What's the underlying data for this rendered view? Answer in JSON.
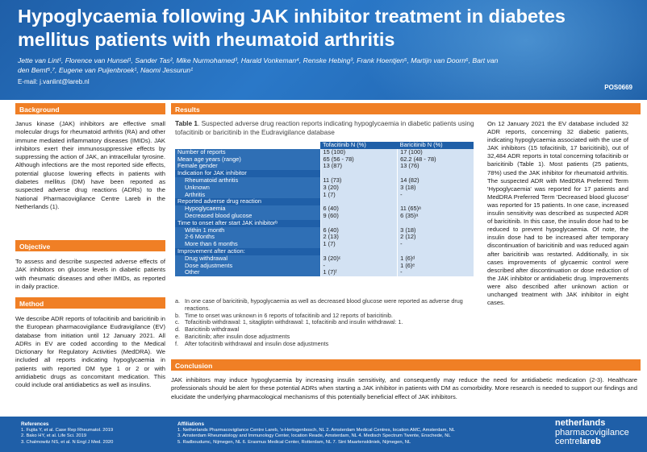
{
  "header": {
    "title": "Hypoglycaemia following JAK inhibitor treatment in diabetes mellitus patients with rheumatoid arthritis",
    "authors": "Jette van Lint¹, Florence van Hunsel¹, Sander Tas², Mike Nurmohamed³, Harald Vonkeman⁴, Renske Hebing³, Frank Hoentjen⁵, Martijn van Doorn⁶, Bart van den Bemt⁵,⁷, Eugene van Puijenbroek¹, Naomi Jessurun¹",
    "email": "E-mail: j.vanlint@lareb.nl",
    "poster_code": "POS0669"
  },
  "background": {
    "heading": "Background",
    "text": "Janus kinase (JAK) inhibitors are effective small molecular drugs for rheumatoid arthritis (RA) and other immune mediated inflammatory diseases (IMIDs). JAK inhibitors exert their immunosuppressive effects by suppressing the action of JAK, an intracellular tyrosine. Although infections are the most reported side effects, potential glucose lowering effects in patients with diabetes mellitus (DM) have been reported as suspected adverse drug reactions (ADRs) to the National Pharmacovigilance Centre Lareb in the Netherlands (1)."
  },
  "objective": {
    "heading": "Objective",
    "text": "To assess and describe suspected adverse effects of JAK inhibitors on glucose levels in diabetic patients with rheumatic diseases and other IMIDs, as reported in daily practice."
  },
  "method": {
    "heading": "Method",
    "text": "We describe ADR reports of tofacitinib and baricitinib in the European pharmacovigilance Eudravigilance (EV) database from initiation until 12 January 2021. All ADRs in EV are coded according to the Medical Dictionary for Regulatory Activities (MedDRA). We included all reports indicating hypoglycaemia in patients with reported DM type 1 or 2 or with antidiabetic drugs as concomitant medication. This could include oral antidiabetics as well as insulins."
  },
  "results": {
    "heading": "Results",
    "table_title_label": "Table 1",
    "table_title_text": ". Suspected adverse drug reaction reports indicating hypoglycaemia in diabetic patients using tofacitinib or baricitinib in the Eudravigilance database",
    "col1": "Tofacitinib N (%)",
    "col2": "Baricitinib N (%)",
    "rows": [
      {
        "label": "Number of reports",
        "a": "15 (100)",
        "b": "17 (100)",
        "kind": "main"
      },
      {
        "label": "Mean age years (range)",
        "a": "65 (56 - 78)",
        "b": "62.2 (48 - 78)",
        "kind": "main"
      },
      {
        "label": "Female gender",
        "a": "13 (87)",
        "b": "13 (76)",
        "kind": "main"
      },
      {
        "label": "Indication for JAK inhibitor",
        "a": "",
        "b": "",
        "kind": "cat"
      },
      {
        "label": "Rheumatoid arthritis",
        "a": "11 (73)",
        "b": "14 (82)",
        "kind": "sub"
      },
      {
        "label": "Unknown",
        "a": "3 (20)",
        "b": "3 (18)",
        "kind": "sub"
      },
      {
        "label": "Arthritis",
        "a": "1 (7)",
        "b": "-",
        "kind": "sub"
      },
      {
        "label": "Reported adverse drug reaction",
        "a": "",
        "b": "",
        "kind": "cat"
      },
      {
        "label": "Hypoglycaemia",
        "a": "6 (40)",
        "b": "11 (65)ᵃ",
        "kind": "sub"
      },
      {
        "label": "Decreased blood glucose",
        "a": "9 (60)",
        "b": "6 (35)ᵃ",
        "kind": "sub"
      },
      {
        "label": "Time to onset after start JAK inhibitorᵇ",
        "a": "",
        "b": "",
        "kind": "cat"
      },
      {
        "label": "Within 1 month",
        "a": "6 (40)",
        "b": "3 (18)",
        "kind": "sub"
      },
      {
        "label": "2-6 Months",
        "a": "2 (13)",
        "b": "2 (12)",
        "kind": "sub"
      },
      {
        "label": "More than 6 months",
        "a": "1 (7)",
        "b": "-",
        "kind": "sub"
      },
      {
        "label": "Improvement after action:",
        "a": "",
        "b": "",
        "kind": "cat"
      },
      {
        "label": "Drug withdrawal",
        "a": "3 (20)ᶜ",
        "b": "1 (6)ᵈ",
        "kind": "sub"
      },
      {
        "label": "Dose adjustments",
        "a": "-",
        "b": "1 (6)ᵉ",
        "kind": "sub"
      },
      {
        "label": "Other",
        "a": "1 (7)ᶠ",
        "b": "-",
        "kind": "sub"
      }
    ],
    "footnotes": [
      {
        "k": "a.",
        "t": "In one case of baricitinib, hypoglycaemia as well as decreased blood glucose were reported as adverse drug reactions."
      },
      {
        "k": "b.",
        "t": "Time to onset was unknown in 6 reports of tofacitinib and 12 reports of baricitinib."
      },
      {
        "k": "c.",
        "t": "Tofacitinib withdrawal: 1, sitagliptin withdrawal: 1, tofacitinib and insulin withdrawal: 1."
      },
      {
        "k": "d.",
        "t": "Baricitinib withdrawal"
      },
      {
        "k": "e.",
        "t": "Baricitinib; after insulin dose adjustments"
      },
      {
        "k": "f.",
        "t": "After tofacitinib withdrawal and insulin dose adjustments"
      }
    ],
    "right_text": "On 12 January 2021 the EV database included 32 ADR reports, concerning 32 diabetic patients, indicating hypoglycaemia associated with the use of JAK inhibitors (15 tofacitinib, 17 baricitinib), out of 32,484 ADR reports in total concerning tofacitinib or baricitinib (Table 1). Most patients (25 patients, 78%) used the JAK inhibitor for rheumatoid arthritis. The suspected ADR with MedDRA Preferred Term 'Hypoglycaemia' was reported for 17 patients and MedDRA Preferred Term 'Decreased blood glucose' was reported for 15 patients. In one case, increased insulin sensitivity was described as suspected ADR of baricitinib. In this case, the insulin dose had to be reduced to prevent hypoglycaemia. Of note, the insulin dose had to be increased after temporary discontinuation of baricitinib and was reduced again after baricitinib was restarted. Additionally, in six cases improvements of glycaemic control were described after discontinuation or dose reduction of the JAK inhibitor or antidiabetic drug. Improvements were also described after unknown action or unchanged treatment with JAK inhibitor in eight cases."
  },
  "conclusion": {
    "heading": "Conclusion",
    "text": "JAK inhibitors may induce hypoglycaemia by increasing insulin sensitivity, and consequently may reduce the need for antidiabetic medication (2-3). Healthcare professionals should be alert for these potential ADRs when starting a JAK inhibitor in patients with DM as comorbidity. More research is needed to support our findings and elucidate the underlying pharmacological mechanisms of this potentially beneficial effect of JAK inhibitors."
  },
  "references": {
    "heading": "References",
    "items": [
      "1. Fujita Y, et al. Case Rep Rheumatol. 2019",
      "2. Bako HY, et al. Life Sci. 2019",
      "3. Chalmowitz NS, et al. N Engl J Med. 2020"
    ]
  },
  "affiliations": {
    "heading": "Affiliations",
    "items": [
      "1. Netherlands Pharmacovigilance Centre Lareb, 's-Hertogenbosch, NL 2. Amsterdam Medical Centres, location AMC, Amsterdam, NL",
      "3. Amsterdam Rheumatology and Immunology Center, location Reade, Amsterdam, NL 4. Medisch Spectrum Twente, Enschede, NL",
      "5. Radboudumc, Nijmegen, NL 6. Erasmus Medical Center, Rotterdam, NL 7. Sint Maartenskliniek, Nijmegen, NL"
    ]
  },
  "logo": {
    "line1": "netherlands",
    "line2": "pharmacovigilance",
    "line3a": "centre",
    "line3b": "lareb"
  },
  "colors": {
    "header_blue": "#1f5fa8",
    "section_orange": "#f07f25",
    "table_cell": "#d3e2f3"
  }
}
